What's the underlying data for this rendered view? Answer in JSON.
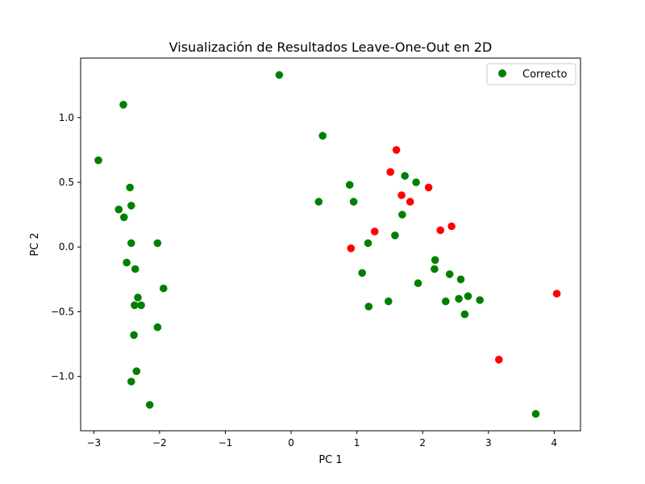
{
  "chart_data": {
    "type": "scatter",
    "title": "Visualización de Resultados Leave-One-Out en 2D",
    "xlabel": "PC 1",
    "ylabel": "PC 2",
    "xlim": [
      -3.2,
      4.4
    ],
    "ylim": [
      -1.42,
      1.46
    ],
    "xticks": [
      -3,
      -2,
      -1,
      0,
      1,
      2,
      3,
      4
    ],
    "xtick_labels": [
      "−3",
      "−2",
      "−1",
      "0",
      "1",
      "2",
      "3",
      "4"
    ],
    "yticks": [
      -1.0,
      -0.5,
      0.0,
      0.5,
      1.0
    ],
    "ytick_labels": [
      "−1.0",
      "−0.5",
      "0.0",
      "0.5",
      "1.0"
    ],
    "grid": false,
    "legend": {
      "placement": "top-right",
      "entries": [
        {
          "label": "Correcto",
          "color": "#008000"
        }
      ]
    },
    "series": [
      {
        "name": "Correcto",
        "color": "#008000",
        "points": [
          [
            -2.55,
            1.1
          ],
          [
            -2.93,
            0.67
          ],
          [
            -2.45,
            0.46
          ],
          [
            -2.62,
            0.29
          ],
          [
            -2.43,
            0.32
          ],
          [
            -2.54,
            0.23
          ],
          [
            -2.43,
            0.03
          ],
          [
            -2.03,
            0.03
          ],
          [
            -2.5,
            -0.12
          ],
          [
            -2.37,
            -0.17
          ],
          [
            -2.33,
            -0.39
          ],
          [
            -2.38,
            -0.45
          ],
          [
            -2.28,
            -0.45
          ],
          [
            -1.94,
            -0.32
          ],
          [
            -2.39,
            -0.68
          ],
          [
            -2.03,
            -0.62
          ],
          [
            -2.35,
            -0.96
          ],
          [
            -2.43,
            -1.04
          ],
          [
            -2.15,
            -1.22
          ],
          [
            -0.18,
            1.33
          ],
          [
            0.48,
            0.86
          ],
          [
            0.42,
            0.35
          ],
          [
            0.89,
            0.48
          ],
          [
            0.95,
            0.35
          ],
          [
            1.73,
            0.55
          ],
          [
            1.9,
            0.5
          ],
          [
            1.69,
            0.25
          ],
          [
            1.58,
            0.09
          ],
          [
            1.17,
            0.03
          ],
          [
            1.08,
            -0.2
          ],
          [
            1.18,
            -0.46
          ],
          [
            1.48,
            -0.42
          ],
          [
            1.93,
            -0.28
          ],
          [
            2.19,
            -0.1
          ],
          [
            2.18,
            -0.17
          ],
          [
            2.41,
            -0.21
          ],
          [
            2.58,
            -0.25
          ],
          [
            2.35,
            -0.42
          ],
          [
            2.55,
            -0.4
          ],
          [
            2.69,
            -0.38
          ],
          [
            2.87,
            -0.41
          ],
          [
            2.64,
            -0.52
          ],
          [
            3.72,
            -1.29
          ]
        ]
      },
      {
        "color": "#ff0000",
        "points": [
          [
            1.6,
            0.75
          ],
          [
            1.51,
            0.58
          ],
          [
            2.09,
            0.46
          ],
          [
            1.68,
            0.4
          ],
          [
            1.81,
            0.35
          ],
          [
            2.44,
            0.16
          ],
          [
            2.27,
            0.13
          ],
          [
            1.27,
            0.12
          ],
          [
            0.91,
            -0.01
          ],
          [
            4.04,
            -0.36
          ],
          [
            3.16,
            -0.87
          ]
        ]
      }
    ]
  }
}
